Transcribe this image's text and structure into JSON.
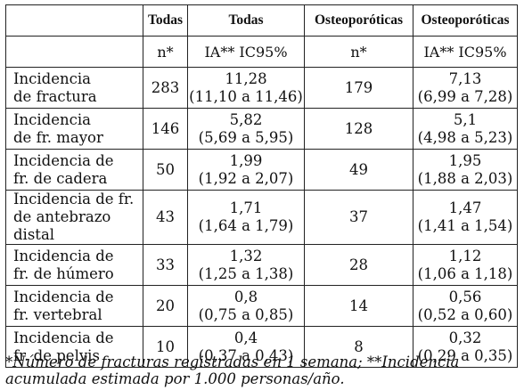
{
  "headers": [
    "",
    "Todas",
    "Todas",
    "Osteoporóticas",
    "Osteoporóticas"
  ],
  "subheaders": [
    "",
    "n*",
    "IA** IC95%",
    "n*",
    "IA** IC95%"
  ],
  "rows": [
    {
      "label": [
        "Incidencia",
        "de fractura"
      ],
      "n_all": "283",
      "ia_all": "11,28",
      "ci_all": "(11,10 a 11,46)",
      "n_ost": "179",
      "ia_ost": "7,13",
      "ci_ost": "(6,99 a 7,28)"
    },
    {
      "label": [
        "Incidencia",
        "de fr. mayor"
      ],
      "n_all": "146",
      "ia_all": "5,82",
      "ci_all": "(5,69 a 5,95)",
      "n_ost": "128",
      "ia_ost": "5,1",
      "ci_ost": "(4,98 a 5,23)"
    },
    {
      "label": [
        "Incidencia de",
        "fr. de cadera"
      ],
      "n_all": "50",
      "ia_all": "1,99",
      "ci_all": "(1,92 a 2,07)",
      "n_ost": "49",
      "ia_ost": "1,95",
      "ci_ost": "(1,88 a 2,03)"
    },
    {
      "label": [
        "Incidencia de fr.",
        "de antebrazo distal"
      ],
      "n_all": "43",
      "ia_all": "1,71",
      "ci_all": "(1,64 a 1,79)",
      "n_ost": "37",
      "ia_ost": "1,47",
      "ci_ost": "(1,41 a 1,54)"
    },
    {
      "label": [
        "Incidencia de",
        "fr. de húmero"
      ],
      "n_all": "33",
      "ia_all": "1,32",
      "ci_all": "(1,25 a 1,38)",
      "n_ost": "28",
      "ia_ost": "1,12",
      "ci_ost": "(1,06 a 1,18)"
    },
    {
      "label": [
        "Incidencia de",
        "fr. vertebral"
      ],
      "n_all": "20",
      "ia_all": "0,8",
      "ci_all": "(0,75 a 0,85)",
      "n_ost": "14",
      "ia_ost": "0,56",
      "ci_ost": "(0,52 a 0,60)"
    },
    {
      "label": [
        "Incidencia de",
        "fr. de pelvis"
      ],
      "n_all": "10",
      "ia_all": "0,4",
      "ci_all": "(0,37 a 0,43)",
      "n_ost": "8",
      "ia_ost": "0,32",
      "ci_ost": "(0,29 a 0,35)"
    }
  ],
  "footnote": [
    "*Número de fracturas registradas en 1 semana; **Incidencia",
    "acumulada estimada por 1.000 personas/año."
  ]
}
